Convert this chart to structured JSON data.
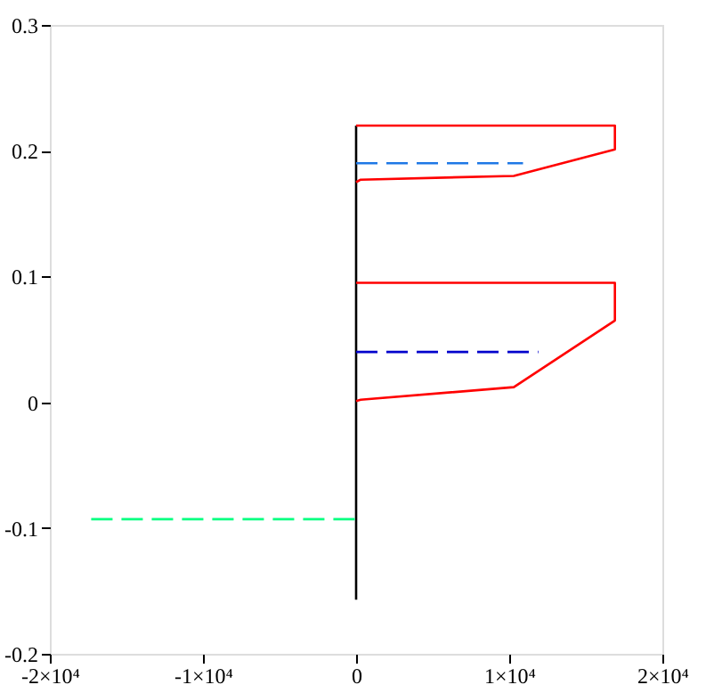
{
  "chart_data": {
    "type": "line",
    "xlim": [
      -20000,
      20000
    ],
    "ylim": [
      -0.2,
      0.3
    ],
    "xticks": [
      {
        "value": -20000,
        "label": "-2×10⁴"
      },
      {
        "value": -10000,
        "label": "-1×10⁴"
      },
      0,
      {
        "value": 10000,
        "label": "1×10⁴"
      },
      {
        "value": 20000,
        "label": "2×10⁴"
      }
    ],
    "yticks": [
      -0.2,
      -0.1,
      0,
      0.1,
      0.2,
      0.3
    ],
    "grid": false,
    "legend": false,
    "series": [
      {
        "color": "#000000",
        "line_style": "solid",
        "x": [
          0,
          0
        ],
        "values": [
          -0.157,
          0.22
        ]
      },
      {
        "color": "#ff0000",
        "line_style": "solid",
        "x": [
          0,
          16900,
          16900,
          10300,
          300,
          0
        ],
        "values": [
          0.22,
          0.22,
          0.201,
          0.18,
          0.177,
          0.175
        ]
      },
      {
        "color": "#1e78e6",
        "line_style": "dashed",
        "x": [
          0,
          10900
        ],
        "values": [
          0.19,
          0.19
        ]
      },
      {
        "color": "#ff0000",
        "line_style": "solid",
        "x": [
          0,
          16900,
          16900,
          10300,
          300,
          0
        ],
        "values": [
          0.095,
          0.095,
          0.065,
          0.012,
          0.002,
          0.001
        ]
      },
      {
        "color": "#0000cc",
        "line_style": "dashed",
        "x": [
          0,
          11900
        ],
        "values": [
          0.04,
          0.04
        ]
      },
      {
        "color": "#00ff80",
        "line_style": "dashed",
        "x": [
          -17300,
          0
        ],
        "values": [
          -0.093,
          -0.093
        ]
      }
    ]
  }
}
